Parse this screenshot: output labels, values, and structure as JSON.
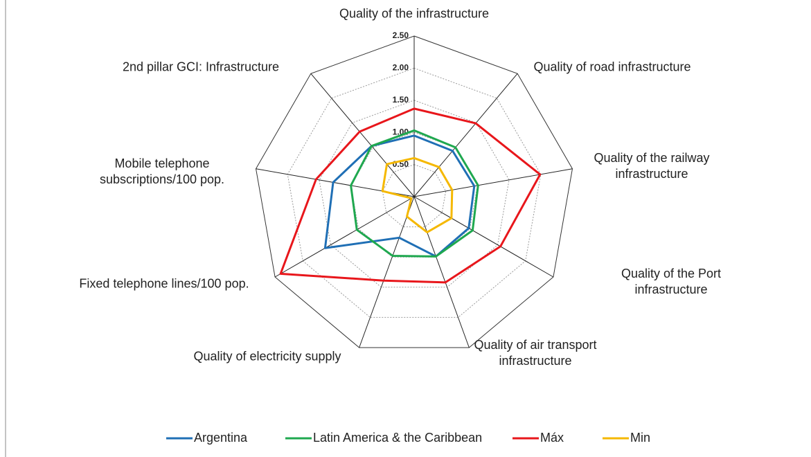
{
  "chart_data": {
    "type": "radar",
    "categories": [
      "Quality of the infrastructure",
      "Quality of road infrastructure",
      "Quality of the railway\ninfrastructure",
      "Quality of the Port infrastructure",
      "Quality of air transport\ninfrastructure",
      "Quality of electricity supply",
      "Fixed telephone lines/100 pop.",
      "Mobile telephone\nsubscriptions/100 pop.",
      "2nd pillar GCI: Infrastructure"
    ],
    "series": [
      {
        "name": "Argentina",
        "color": "#1f6fb5",
        "values": [
          0.95,
          0.93,
          0.95,
          0.98,
          0.99,
          0.68,
          1.6,
          1.28,
          1.03
        ]
      },
      {
        "name": "Latin America & the Caribbean",
        "color": "#1fa84f",
        "values": [
          1.03,
          1.0,
          1.01,
          1.05,
          0.99,
          0.98,
          1.03,
          1.0,
          1.03
        ]
      },
      {
        "name": "Máx",
        "color": "#e8161b",
        "values": [
          1.37,
          1.49,
          1.99,
          1.55,
          1.42,
          1.39,
          2.4,
          1.55,
          1.32
        ]
      },
      {
        "name": "Min",
        "color": "#f5b800",
        "values": [
          0.6,
          0.6,
          0.6,
          0.67,
          0.59,
          0.33,
          0.05,
          0.5,
          0.66
        ]
      }
    ],
    "ylim": [
      0,
      2.5
    ],
    "yticks": [
      {
        "value": 0,
        "label": "-"
      },
      {
        "value": 0.5,
        "label": "0.50"
      },
      {
        "value": 1,
        "label": "1.00"
      },
      {
        "value": 1.5,
        "label": "1.50"
      },
      {
        "value": 2,
        "label": "2.00"
      },
      {
        "value": 2.5,
        "label": "2.50"
      }
    ],
    "grid": true,
    "legend": "bottom"
  }
}
